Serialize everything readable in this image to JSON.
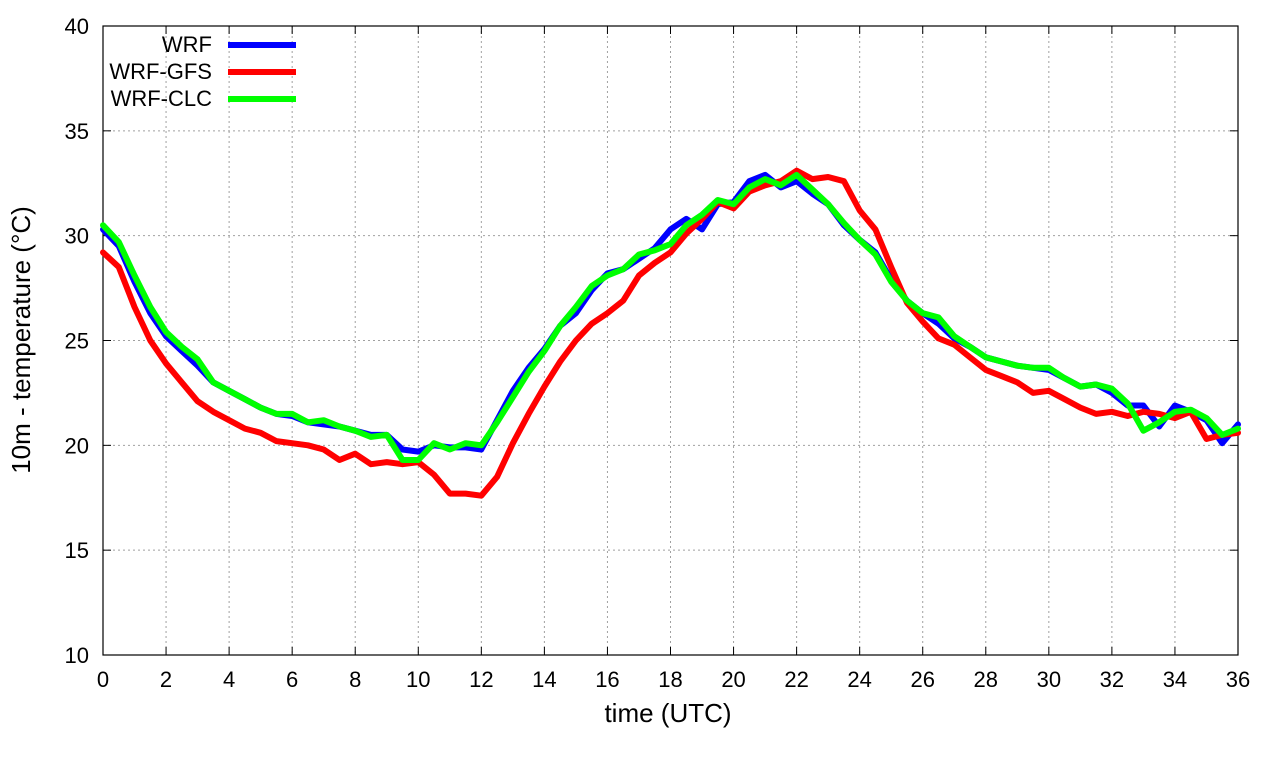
{
  "chart_data": {
    "type": "line",
    "xlabel": "time (UTC)",
    "ylabel": "10m - temperature (°C)",
    "xlim": [
      0,
      36
    ],
    "ylim": [
      10,
      40
    ],
    "xticks": [
      0,
      2,
      4,
      6,
      8,
      10,
      12,
      14,
      16,
      18,
      20,
      22,
      24,
      26,
      28,
      30,
      32,
      34,
      36
    ],
    "yticks": [
      10,
      15,
      20,
      25,
      30,
      35,
      40
    ],
    "grid": true,
    "legend_position": "top-left",
    "x": [
      0,
      0.5,
      1,
      1.5,
      2,
      2.5,
      3,
      3.5,
      4,
      4.5,
      5,
      5.5,
      6,
      6.5,
      7,
      7.5,
      8,
      8.5,
      9,
      9.5,
      10,
      10.5,
      11,
      11.5,
      12,
      12.5,
      13,
      13.5,
      14,
      14.5,
      15,
      15.5,
      16,
      16.5,
      17,
      17.5,
      18,
      18.5,
      19,
      19.5,
      20,
      20.5,
      21,
      21.5,
      22,
      22.5,
      23,
      23.5,
      24,
      24.5,
      25,
      25.5,
      26,
      26.5,
      27,
      27.5,
      28,
      28.5,
      29,
      29.5,
      30,
      30.5,
      31,
      31.5,
      32,
      32.5,
      33,
      33.5,
      34,
      34.5,
      35,
      35.5,
      36
    ],
    "series": [
      {
        "name": "WRF",
        "color": "#0000ff",
        "values": [
          30.3,
          29.5,
          27.8,
          26.3,
          25.2,
          24.5,
          23.8,
          23.0,
          22.6,
          22.2,
          21.8,
          21.5,
          21.4,
          21.1,
          21.0,
          20.9,
          20.7,
          20.5,
          20.5,
          19.8,
          19.7,
          20.0,
          19.9,
          19.9,
          19.8,
          21.2,
          22.6,
          23.7,
          24.6,
          25.7,
          26.3,
          27.4,
          28.2,
          28.4,
          28.9,
          29.4,
          30.3,
          30.8,
          30.3,
          31.5,
          31.6,
          32.6,
          32.9,
          32.3,
          32.6,
          32.0,
          31.5,
          30.5,
          29.8,
          29.2,
          27.9,
          26.9,
          26.3,
          25.8,
          25.1,
          24.7,
          24.2,
          24.0,
          23.8,
          23.7,
          23.6,
          23.2,
          22.8,
          22.9,
          22.5,
          21.9,
          21.9,
          20.9,
          21.9,
          21.6,
          21.2,
          20.1,
          21.0
        ]
      },
      {
        "name": "WRF-GFS",
        "color": "#ff0000",
        "values": [
          29.2,
          28.5,
          26.6,
          25.0,
          23.9,
          23.0,
          22.1,
          21.6,
          21.2,
          20.8,
          20.6,
          20.2,
          20.1,
          20.0,
          19.8,
          19.3,
          19.6,
          19.1,
          19.2,
          19.1,
          19.2,
          18.6,
          17.7,
          17.7,
          17.6,
          18.5,
          20.1,
          21.5,
          22.8,
          24.0,
          25.0,
          25.8,
          26.3,
          26.9,
          28.1,
          28.7,
          29.2,
          30.1,
          30.8,
          31.6,
          31.3,
          32.1,
          32.4,
          32.6,
          33.1,
          32.7,
          32.8,
          32.6,
          31.2,
          30.3,
          28.5,
          26.8,
          25.9,
          25.1,
          24.8,
          24.2,
          23.6,
          23.3,
          23.0,
          22.5,
          22.6,
          22.2,
          21.8,
          21.5,
          21.6,
          21.4,
          21.6,
          21.5,
          21.3,
          21.6,
          20.3,
          20.5,
          20.6
        ]
      },
      {
        "name": "WRF-CLC",
        "color": "#00ff00",
        "values": [
          30.5,
          29.7,
          28.1,
          26.6,
          25.4,
          24.7,
          24.1,
          23.0,
          22.6,
          22.2,
          21.8,
          21.5,
          21.5,
          21.1,
          21.2,
          20.9,
          20.7,
          20.4,
          20.5,
          19.3,
          19.3,
          20.1,
          19.8,
          20.1,
          20.0,
          21.1,
          22.3,
          23.5,
          24.5,
          25.7,
          26.6,
          27.6,
          28.1,
          28.4,
          29.1,
          29.3,
          29.6,
          30.5,
          31.0,
          31.7,
          31.5,
          32.3,
          32.7,
          32.4,
          32.9,
          32.2,
          31.5,
          30.6,
          29.8,
          29.1,
          27.8,
          26.9,
          26.3,
          26.1,
          25.2,
          24.7,
          24.2,
          24.0,
          23.8,
          23.7,
          23.7,
          23.2,
          22.8,
          22.9,
          22.7,
          22.0,
          20.7,
          21.1,
          21.6,
          21.7,
          21.3,
          20.5,
          20.8
        ]
      }
    ]
  }
}
